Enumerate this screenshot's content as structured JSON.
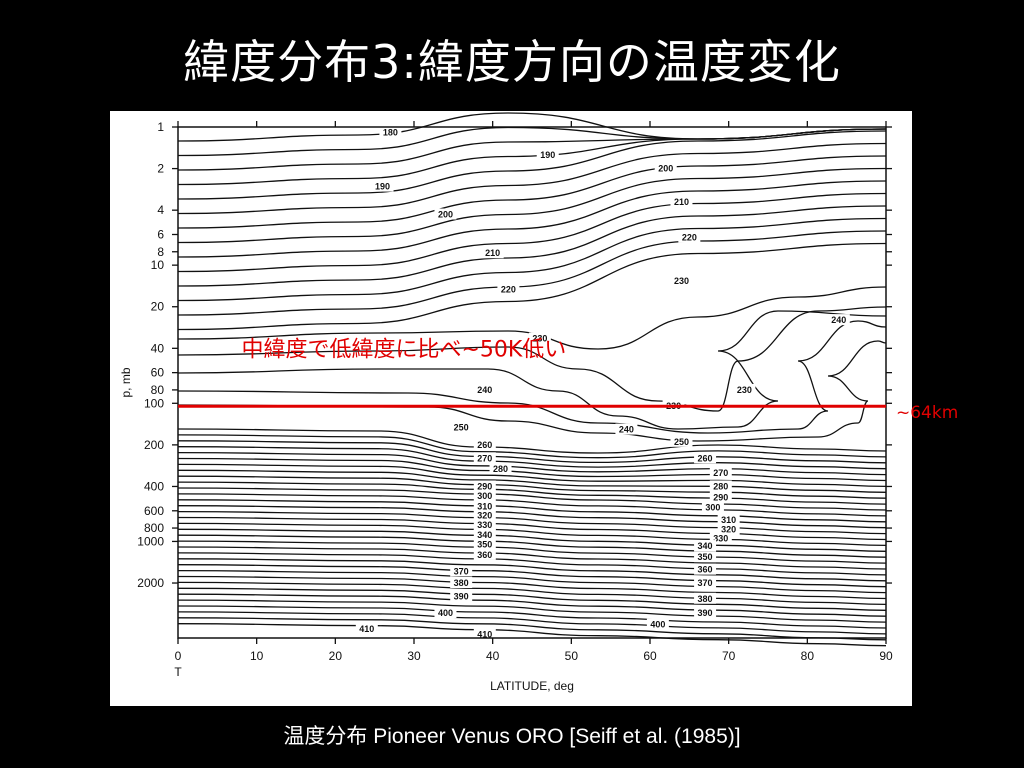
{
  "slide": {
    "title": "緯度分布3:緯度方向の温度変化",
    "caption": "温度分布 Pioneer Venus ORO [Seiff et al. (1985)]",
    "background_color": "#000000",
    "title_color": "#ffffff"
  },
  "chart_data": {
    "type": "contour",
    "xlabel": "LATITUDE, deg",
    "ylabel": "p, mb",
    "x_extra_label": "T",
    "xlim": [
      0,
      90
    ],
    "ylim": [
      1,
      5000
    ],
    "y_scale": "log",
    "y_inverted": true,
    "x_ticks": [
      0,
      10,
      20,
      30,
      40,
      50,
      60,
      70,
      80,
      90
    ],
    "y_ticks": [
      1,
      2,
      4,
      6,
      8,
      10,
      20,
      40,
      60,
      80,
      100,
      200,
      400,
      600,
      800,
      1000,
      2000
    ],
    "contour_labels": [
      {
        "text": "180",
        "lat": 27,
        "p": 1.1
      },
      {
        "text": "190",
        "lat": 47,
        "p": 1.6
      },
      {
        "text": "190",
        "lat": 26,
        "p": 2.7
      },
      {
        "text": "200",
        "lat": 62,
        "p": 2.0
      },
      {
        "text": "200",
        "lat": 34,
        "p": 4.3
      },
      {
        "text": "210",
        "lat": 64,
        "p": 3.5
      },
      {
        "text": "210",
        "lat": 40,
        "p": 8.2
      },
      {
        "text": "220",
        "lat": 65,
        "p": 6.3
      },
      {
        "text": "220",
        "lat": 42,
        "p": 15
      },
      {
        "text": "230",
        "lat": 64,
        "p": 13
      },
      {
        "text": "240",
        "lat": 84,
        "p": 25
      },
      {
        "text": "230",
        "lat": 46,
        "p": 34
      },
      {
        "text": "240",
        "lat": 39,
        "p": 80
      },
      {
        "text": "230",
        "lat": 72,
        "p": 80
      },
      {
        "text": "230",
        "lat": 63,
        "p": 105
      },
      {
        "text": "250",
        "lat": 36,
        "p": 150
      },
      {
        "text": "240",
        "lat": 57,
        "p": 155
      },
      {
        "text": "250",
        "lat": 64,
        "p": 190
      },
      {
        "text": "260",
        "lat": 39,
        "p": 200
      },
      {
        "text": "270",
        "lat": 39,
        "p": 250
      },
      {
        "text": "280",
        "lat": 41,
        "p": 300
      },
      {
        "text": "260",
        "lat": 67,
        "p": 250
      },
      {
        "text": "270",
        "lat": 69,
        "p": 320
      },
      {
        "text": "280",
        "lat": 69,
        "p": 400
      },
      {
        "text": "290",
        "lat": 39,
        "p": 400
      },
      {
        "text": "300",
        "lat": 39,
        "p": 470
      },
      {
        "text": "310",
        "lat": 39,
        "p": 560
      },
      {
        "text": "320",
        "lat": 39,
        "p": 650
      },
      {
        "text": "330",
        "lat": 39,
        "p": 760
      },
      {
        "text": "340",
        "lat": 39,
        "p": 900
      },
      {
        "text": "350",
        "lat": 39,
        "p": 1050
      },
      {
        "text": "360",
        "lat": 39,
        "p": 1250
      },
      {
        "text": "290",
        "lat": 69,
        "p": 480
      },
      {
        "text": "300",
        "lat": 68,
        "p": 570
      },
      {
        "text": "310",
        "lat": 70,
        "p": 700
      },
      {
        "text": "320",
        "lat": 70,
        "p": 820
      },
      {
        "text": "330",
        "lat": 69,
        "p": 950
      },
      {
        "text": "340",
        "lat": 67,
        "p": 1080
      },
      {
        "text": "350",
        "lat": 67,
        "p": 1300
      },
      {
        "text": "360",
        "lat": 67,
        "p": 1600
      },
      {
        "text": "370",
        "lat": 36,
        "p": 1650
      },
      {
        "text": "380",
        "lat": 36,
        "p": 2000
      },
      {
        "text": "390",
        "lat": 36,
        "p": 2500
      },
      {
        "text": "370",
        "lat": 67,
        "p": 2000
      },
      {
        "text": "380",
        "lat": 67,
        "p": 2600
      },
      {
        "text": "390",
        "lat": 67,
        "p": 3300
      },
      {
        "text": "400",
        "lat": 34,
        "p": 3300
      },
      {
        "text": "400",
        "lat": 61,
        "p": 4000
      },
      {
        "text": "410",
        "lat": 24,
        "p": 4300
      },
      {
        "text": "410",
        "lat": 39,
        "p": 4700
      }
    ],
    "reference_line": {
      "p": 105,
      "label": "~64km",
      "color": "#e00000"
    },
    "annotation": {
      "text": "中緯度で低緯度に比べ~50K低い",
      "lat": 4,
      "p": 40,
      "color": "#e00000"
    }
  }
}
